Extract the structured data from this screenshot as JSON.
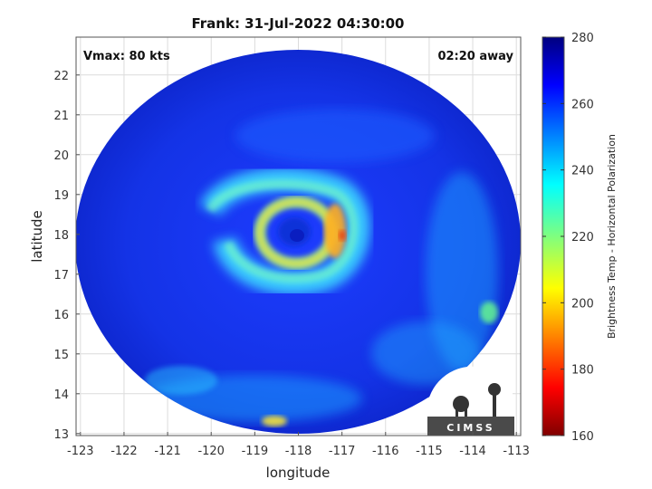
{
  "title": "Frank: 31-Jul-2022 04:30:00",
  "vmax_label": "Vmax: 80 kts",
  "time_offset_label": "02:20 away",
  "xlabel": "longitude",
  "ylabel": "latitude",
  "colorbar_label": "Brightness Temp - Horizontal Polarization",
  "logo_text": "CIMSS",
  "colors": {
    "background_swath": "#1a2fd8",
    "warm_core": "#7cf0ff",
    "hot_spot": "#e84010"
  },
  "chart_data": {
    "type": "heatmap",
    "title": "Frank: 31-Jul-2022 04:30:00",
    "xlabel": "longitude",
    "ylabel": "latitude",
    "xlim": [
      -123.1,
      -112.9
    ],
    "ylim": [
      12.95,
      22.95
    ],
    "x_ticks": [
      -123,
      -122,
      -121,
      -120,
      -119,
      -118,
      -117,
      -116,
      -115,
      -114,
      -113
    ],
    "y_ticks": [
      13,
      14,
      15,
      16,
      17,
      18,
      19,
      20,
      21,
      22
    ],
    "colorbar": {
      "label": "Brightness Temp - Horizontal Polarization",
      "min": 160,
      "max": 280,
      "ticks": [
        160,
        180,
        200,
        220,
        240,
        260,
        280
      ],
      "colormap": "jet"
    },
    "storm_center": {
      "lon": -118.2,
      "lat": 18.0
    },
    "grid": true
  }
}
